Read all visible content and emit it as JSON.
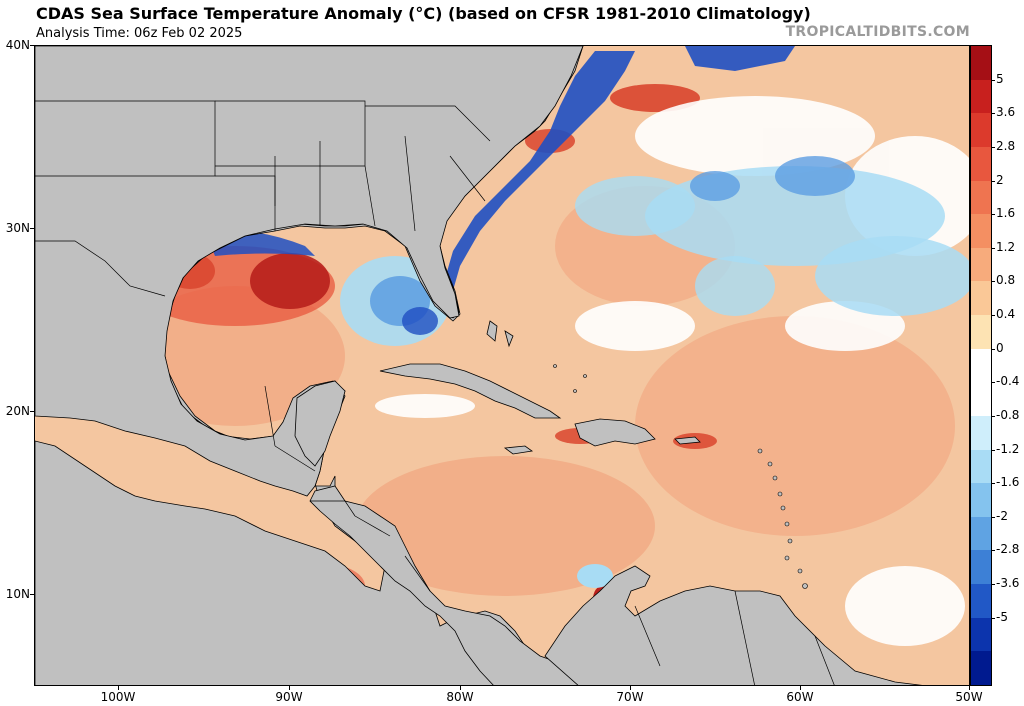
{
  "header": {
    "title": "CDAS Sea Surface Temperature Anomaly (°C) (based on CFSR 1981-2010 Climatology)",
    "subtitle": "Analysis Time: 06z Feb 02 2025",
    "credit": "TROPICALTIDBITS.COM"
  },
  "axes": {
    "lat_labels": [
      "40N",
      "30N",
      "20N",
      "10N"
    ],
    "lon_labels": [
      "100W",
      "90W",
      "80W",
      "70W",
      "60W",
      "50W"
    ]
  },
  "colorbar": {
    "labels": [
      "5",
      "3.6",
      "2.8",
      "2",
      "1.6",
      "1.2",
      "0.8",
      "0.4",
      "0",
      "-0.4",
      "-0.8",
      "-1.2",
      "-1.6",
      "-2",
      "-2.8",
      "-3.6",
      "-5"
    ],
    "colors": [
      "#a50f15",
      "#c8201e",
      "#dc3a2c",
      "#e8573e",
      "#ef7450",
      "#f48f62",
      "#f7ab7c",
      "#fac897",
      "#fde3b3",
      "#ffffff",
      "#ffffff",
      "#cfeefb",
      "#a9dcf5",
      "#84c3ee",
      "#5fa3e3",
      "#3d80d6",
      "#2158c6",
      "#0c34ad",
      "#001a8f"
    ]
  },
  "map": {
    "colors": {
      "land": "#c0c0c0",
      "border": "#000000",
      "warm_base": "#f4c6a0",
      "warm_mid": "#f1a57f",
      "warm_strong": "#d9452e",
      "warm_peak": "#b8201c",
      "neutral": "#ffffff",
      "light_cool": "#a8dcf4",
      "cool": "#5d9ee2",
      "cold": "#1f4fc2"
    }
  }
}
